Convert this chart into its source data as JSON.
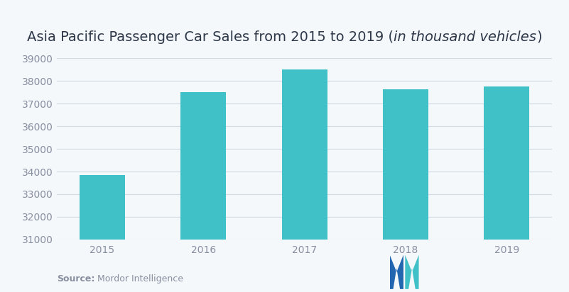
{
  "title_normal": "Asia Pacific Passenger Car Sales from 2015 to 2019 (",
  "title_italic": "in thousand vehicles",
  "title_end": ")",
  "years": [
    "2015",
    "2016",
    "2017",
    "2018",
    "2019"
  ],
  "values": [
    33850,
    37520,
    38500,
    37620,
    37750
  ],
  "bar_color": "#40c1c8",
  "background_color": "#f4f8fb",
  "grid_color": "#d0dbe6",
  "tick_color": "#888fa0",
  "title_color": "#2d3748",
  "ylim_min": 31000,
  "ylim_max": 39000,
  "yticks": [
    31000,
    32000,
    33000,
    34000,
    35000,
    36000,
    37000,
    38000,
    39000
  ],
  "source_bold": "Source:",
  "source_normal": " Mordor Intelligence",
  "source_color": "#888fa0",
  "title_fontsize": 14,
  "tick_fontsize": 10,
  "bar_width": 0.45
}
